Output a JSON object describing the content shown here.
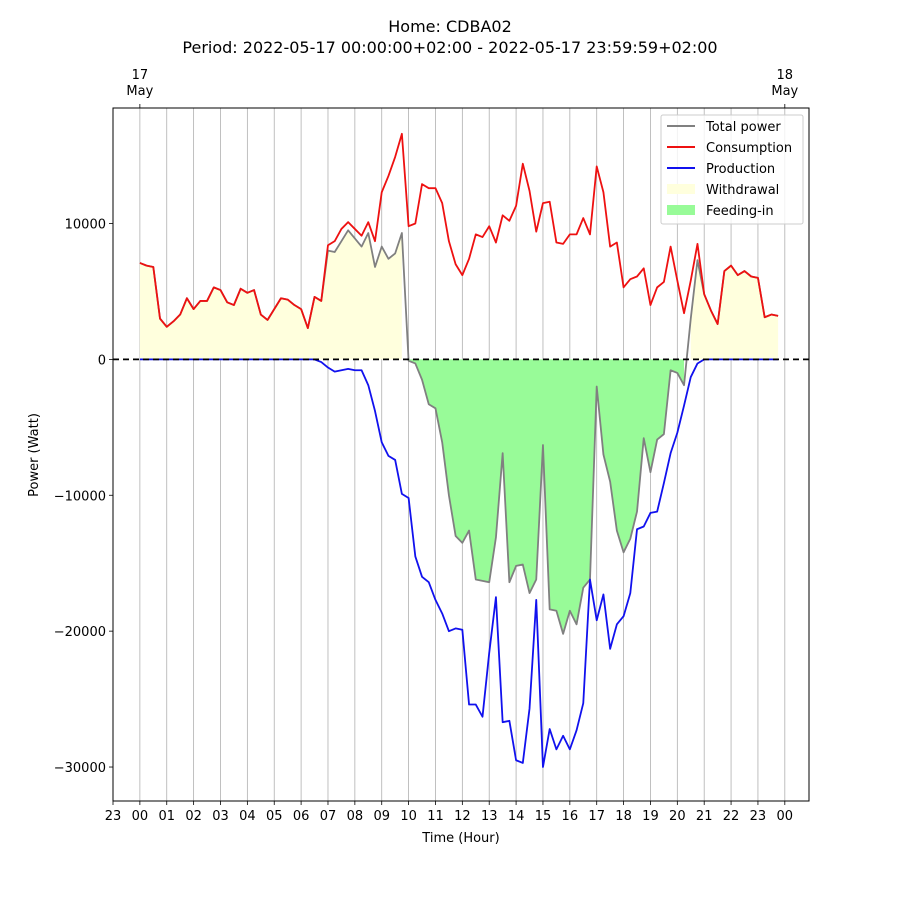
{
  "chart_data": {
    "type": "line",
    "title_line1": "Home: CDBA02",
    "title_line2": "Period: 2022-05-17 00:00:00+02:00 - 2022-05-17 23:59:59+02:00",
    "xlabel": "Time (Hour)",
    "ylabel": "Power (Watt)",
    "xlim": [
      -1,
      24.9
    ],
    "ylim": [
      -32500,
      18500
    ],
    "x_ticks": [
      -1,
      0,
      1,
      2,
      3,
      4,
      5,
      6,
      7,
      8,
      9,
      10,
      11,
      12,
      13,
      14,
      15,
      16,
      17,
      18,
      19,
      20,
      21,
      22,
      23,
      24
    ],
    "x_tick_labels": [
      "23",
      "00",
      "01",
      "02",
      "03",
      "04",
      "05",
      "06",
      "07",
      "08",
      "09",
      "10",
      "11",
      "12",
      "13",
      "14",
      "15",
      "16",
      "17",
      "18",
      "19",
      "20",
      "21",
      "22",
      "23",
      "00"
    ],
    "y_ticks": [
      10000,
      0,
      -10000,
      -20000,
      -30000
    ],
    "y_tick_labels": [
      "10000",
      "0",
      "−10000",
      "−20000",
      "−30000"
    ],
    "top_ticks": [
      {
        "x": 0,
        "line1": "17",
        "line2": "May"
      },
      {
        "x": 24,
        "line1": "18",
        "line2": "May"
      }
    ],
    "x": [
      0,
      0.25,
      0.5,
      0.75,
      1,
      1.25,
      1.5,
      1.75,
      2,
      2.25,
      2.5,
      2.75,
      3,
      3.25,
      3.5,
      3.75,
      4,
      4.25,
      4.5,
      4.75,
      5,
      5.25,
      5.5,
      5.75,
      6,
      6.25,
      6.5,
      6.75,
      7,
      7.25,
      7.5,
      7.75,
      8,
      8.25,
      8.5,
      8.75,
      9,
      9.25,
      9.5,
      9.75,
      10,
      10.25,
      10.5,
      10.75,
      11,
      11.25,
      11.5,
      11.75,
      12,
      12.25,
      12.5,
      12.75,
      13,
      13.25,
      13.5,
      13.75,
      14,
      14.25,
      14.5,
      14.75,
      15,
      15.25,
      15.5,
      15.75,
      16,
      16.25,
      16.5,
      16.75,
      17,
      17.25,
      17.5,
      17.75,
      18,
      18.25,
      18.5,
      18.75,
      19,
      19.25,
      19.5,
      19.75,
      20,
      20.25,
      20.5,
      20.75,
      21,
      21.25,
      21.5,
      21.75,
      22,
      22.25,
      22.5,
      22.75,
      23,
      23.25,
      23.5,
      23.75
    ],
    "series": [
      {
        "name": "Consumption",
        "color": "#ee1111",
        "values": [
          7100,
          6900,
          6800,
          3000,
          2400,
          2800,
          3300,
          4500,
          3700,
          4300,
          4300,
          5300,
          5100,
          4200,
          4000,
          5200,
          4900,
          5100,
          3300,
          2900,
          3700,
          4500,
          4400,
          4000,
          3700,
          2300,
          4600,
          4300,
          8400,
          8700,
          9600,
          10100,
          9600,
          9100,
          10100,
          8700,
          12300,
          13500,
          14900,
          16600,
          9800,
          10000,
          12900,
          12600,
          12600,
          11500,
          8700,
          7000,
          6200,
          7400,
          9200,
          9000,
          9800,
          8600,
          10600,
          10200,
          11300,
          14400,
          12400,
          9400,
          11500,
          11600,
          8600,
          8500,
          9200,
          9200,
          10400,
          9200,
          14200,
          12300,
          8300,
          8600,
          5300,
          5900,
          6100,
          6700,
          4000,
          5300,
          5700,
          8300,
          5800,
          3400,
          5800,
          8500,
          4800,
          3600,
          2600,
          6500,
          6900,
          6200,
          6500,
          6100,
          6000,
          3100,
          3300,
          3200
        ]
      },
      {
        "name": "Production",
        "color": "#1111ee",
        "values": [
          0,
          0,
          0,
          0,
          0,
          0,
          0,
          0,
          0,
          0,
          0,
          0,
          0,
          0,
          0,
          0,
          0,
          0,
          0,
          0,
          0,
          0,
          0,
          0,
          0,
          0,
          0,
          -200,
          -600,
          -900,
          -800,
          -700,
          -800,
          -800,
          -1900,
          -3800,
          -6100,
          -7100,
          -7400,
          -9900,
          -10200,
          -14500,
          -16000,
          -16400,
          -17700,
          -18700,
          -20000,
          -19800,
          -19900,
          -25400,
          -25400,
          -26300,
          -21600,
          -17500,
          -26700,
          -26600,
          -29500,
          -29700,
          -25700,
          -17700,
          -30000,
          -27200,
          -28700,
          -27700,
          -28700,
          -27300,
          -25300,
          -16200,
          -19200,
          -17300,
          -21300,
          -19500,
          -18900,
          -17200,
          -12500,
          -12300,
          -11300,
          -11200,
          -9100,
          -6900,
          -5400,
          -3400,
          -1300,
          -300,
          0,
          0,
          0,
          0,
          0,
          0,
          0,
          0,
          0,
          0,
          0,
          0
        ]
      },
      {
        "name": "Total power",
        "color": "#808080",
        "values": [
          7100,
          6900,
          6800,
          3000,
          2400,
          2800,
          3300,
          4500,
          3700,
          4300,
          4300,
          5300,
          5100,
          4200,
          4000,
          5200,
          4900,
          5100,
          3300,
          2900,
          3700,
          4500,
          4400,
          4000,
          3700,
          2300,
          4600,
          4300,
          8000,
          7900,
          8700,
          9500,
          8900,
          8300,
          9300,
          6800,
          8300,
          7400,
          7800,
          9300,
          -100,
          -300,
          -1500,
          -3300,
          -3600,
          -6100,
          -10000,
          -13000,
          -13500,
          -12600,
          -16200,
          -16300,
          -16400,
          -13100,
          -6900,
          -16400,
          -15200,
          -15100,
          -17200,
          -16200,
          -6300,
          -18400,
          -18500,
          -20200,
          -18500,
          -19500,
          -16800,
          -16200,
          -2000,
          -7000,
          -9000,
          -12600,
          -14200,
          -13200,
          -11200,
          -5800,
          -8300,
          -5900,
          -5500,
          -800,
          -1000,
          -1900,
          3000,
          7300,
          4800,
          3600,
          2600,
          6500,
          6900,
          6200,
          6500,
          6100,
          6000,
          3100,
          3300,
          3200
        ]
      }
    ],
    "legend": [
      {
        "label": "Total power",
        "kind": "line",
        "color": "#808080"
      },
      {
        "label": "Consumption",
        "kind": "line",
        "color": "#ee1111"
      },
      {
        "label": "Production",
        "kind": "line",
        "color": "#1111ee"
      },
      {
        "label": "Withdrawal",
        "kind": "patch",
        "color": "#ffffdd"
      },
      {
        "label": "Feeding-in",
        "kind": "patch",
        "color": "#98fb98"
      }
    ],
    "legend_position": "top-right",
    "grid": "x-only",
    "zero_line": "dashed"
  }
}
